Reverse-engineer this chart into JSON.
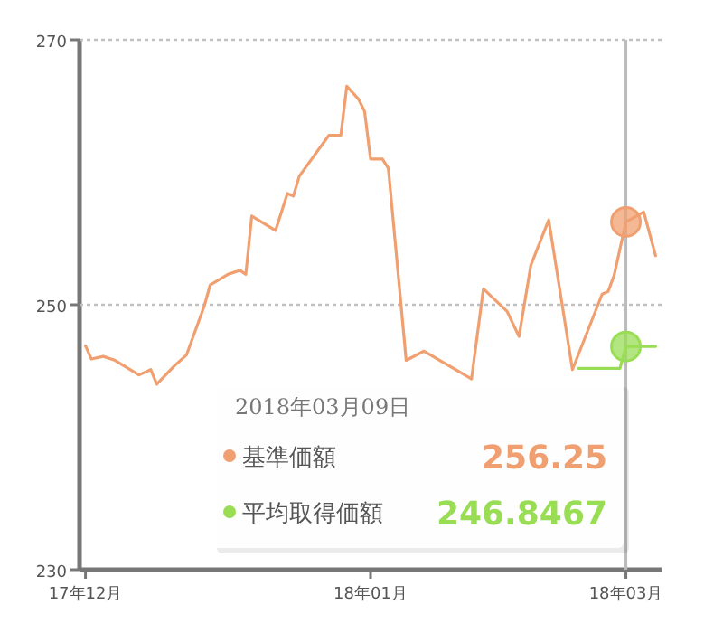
{
  "chart_data": {
    "type": "line",
    "x": [
      "2017-12-08",
      "2017-12-09",
      "2017-12-11",
      "2017-12-13",
      "2017-12-17",
      "2017-12-19",
      "2017-12-20",
      "2017-12-23",
      "2017-12-25",
      "2017-12-28",
      "2017-12-29",
      "2018-01-01",
      "2018-01-03",
      "2018-01-04",
      "2018-01-05",
      "2018-01-09",
      "2018-01-11",
      "2018-01-12",
      "2018-01-13",
      "2018-01-18",
      "2018-01-20",
      "2018-01-21",
      "2018-01-23",
      "2018-01-24",
      "2018-01-25",
      "2018-01-27",
      "2018-01-28",
      "2018-01-31",
      "2018-02-03",
      "2018-02-11",
      "2018-02-13",
      "2018-02-17",
      "2018-02-19",
      "2018-02-21",
      "2018-02-24",
      "2018-02-28",
      "2018-03-05",
      "2018-03-06",
      "2018-03-07",
      "2018-03-09",
      "2018-03-12",
      "2018-03-14"
    ],
    "series": [
      {
        "name": "基準価額",
        "color": "#f0a070",
        "values": [
          246.9,
          245.9,
          246.1,
          245.8,
          244.7,
          245.1,
          244.0,
          245.4,
          246.2,
          249.9,
          251.5,
          252.3,
          252.6,
          252.3,
          256.7,
          255.6,
          258.4,
          258.2,
          259.7,
          262.8,
          262.8,
          266.5,
          265.5,
          264.6,
          261.0,
          261.0,
          260.3,
          245.8,
          246.5,
          244.4,
          251.2,
          249.5,
          247.6,
          253.0,
          256.4,
          245.1,
          250.8,
          251.0,
          252.2,
          256.25,
          257.0,
          253.7
        ]
      },
      {
        "name": "平均取得価額",
        "color": "#99dd55",
        "x": [
          "2018-03-01",
          "2018-03-08",
          "2018-03-09",
          "2018-03-14"
        ],
        "values": [
          245.2,
          245.2,
          246.8467,
          246.8467
        ]
      }
    ],
    "xlim": [
      "2017-12-07",
      "2018-03-15"
    ],
    "xticks": [
      {
        "value": "2017-12-08",
        "label": "17年12月"
      },
      {
        "value": "2018-01-25",
        "label": "18年01月"
      },
      {
        "value": "2018-03-09",
        "label": "18年03月"
      }
    ],
    "ylim": [
      230,
      270
    ],
    "yticks": [
      230,
      250,
      270
    ],
    "legend": "bottom",
    "ref_lines": [
      {
        "axis": "x",
        "value": "2018-03-09",
        "color": "#bbbbbb"
      },
      {
        "axis": "y",
        "value": 250,
        "color": "#c0c0c0",
        "line_style": "dotted"
      },
      {
        "axis": "y",
        "value": 270,
        "color": "#c0c0c0",
        "line_style": "dotted"
      }
    ],
    "annotations": [
      "2018年03月09日",
      "256.25",
      "246.8467"
    ]
  }
}
